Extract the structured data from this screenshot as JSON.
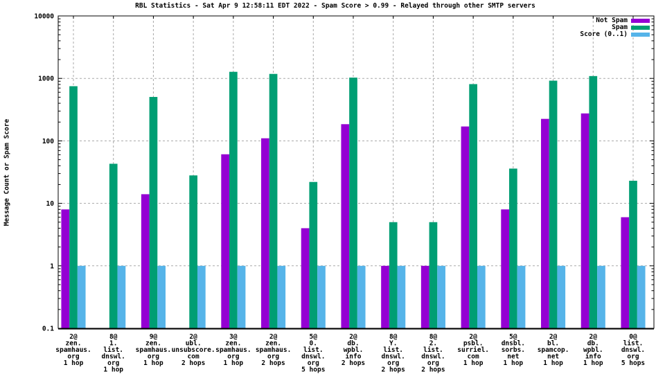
{
  "chart_data": {
    "type": "bar",
    "title": "RBL Statistics - Sat Apr  9 12:58:11 EDT 2022 - Spam Score > 0.99 - Relayed through other SMTP servers",
    "ylabel": "Message Count or Spam Score",
    "yscale": "log",
    "ylim": [
      0.1,
      10000
    ],
    "ytick_labels": [
      "10000",
      "1000",
      "100",
      "10",
      "1",
      "0.1"
    ],
    "grid": "dashed horizontal at decades and vertical at each category",
    "legend_position": "top-right-inside",
    "categories": [
      [
        "2@",
        "zen.",
        "spamhaus.",
        "org",
        "1 hop"
      ],
      [
        "8@",
        "1.",
        "list.",
        "dnswl.",
        "org",
        "1 hop"
      ],
      [
        "9@",
        "zen.",
        "spamhaus.",
        "org",
        "1 hop"
      ],
      [
        "2@",
        "ubl.",
        "unsubscore.",
        "com",
        "2 hops"
      ],
      [
        "3@",
        "zen.",
        "spamhaus.",
        "org",
        "1 hop"
      ],
      [
        "2@",
        "zen.",
        "spamhaus.",
        "org",
        "2 hops"
      ],
      [
        "5@",
        "0.",
        "list.",
        "dnswl.",
        "org",
        "5 hops"
      ],
      [
        "2@",
        "db.",
        "wpbl.",
        "info",
        "2 hops"
      ],
      [
        "8@",
        "Y.",
        "list.",
        "dnswl.",
        "org",
        "2 hops"
      ],
      [
        "8@",
        "2.",
        "list.",
        "dnswl.",
        "org",
        "2 hops"
      ],
      [
        "2@",
        "psbl.",
        "surriel.",
        "com",
        "1 hop"
      ],
      [
        "5@",
        "dnsbl.",
        "sorbs.",
        "net",
        "1 hop"
      ],
      [
        "2@",
        "bl.",
        "spamcop.",
        "net",
        "1 hop"
      ],
      [
        "2@",
        "db.",
        "wpbl.",
        "info",
        "1 hop"
      ],
      [
        "0@",
        "list.",
        "dnswl.",
        "org",
        "5 hops"
      ]
    ],
    "series": [
      {
        "name": "Not Spam",
        "color": "#9400d3",
        "values": [
          8,
          0,
          14,
          0,
          61,
          110,
          4,
          185,
          1,
          1,
          170,
          8,
          225,
          275,
          6
        ]
      },
      {
        "name": "Spam",
        "color": "#009e73",
        "values": [
          750,
          43,
          505,
          28,
          1275,
          1180,
          22,
          1030,
          5,
          5,
          810,
          36,
          920,
          1090,
          23
        ]
      },
      {
        "name": "Score (0..1)",
        "color": "#56b4e9",
        "values": [
          1,
          1,
          1,
          1,
          1,
          1,
          1,
          1,
          1,
          1,
          1,
          1,
          1,
          1,
          1
        ]
      }
    ],
    "colors": {
      "axis": "#000000",
      "grid": "#a8a8a8",
      "background": "#ffffff",
      "text": "#000000"
    }
  }
}
